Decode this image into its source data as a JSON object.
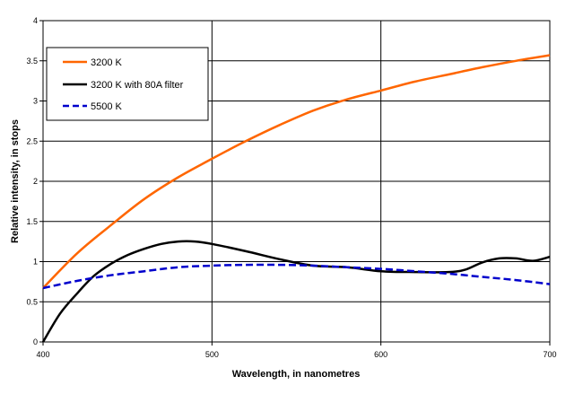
{
  "chart_data": {
    "type": "line",
    "title": "",
    "xlabel": "Wavelength, in nanometres",
    "ylabel": "Relative intensity, in stops",
    "xlim": [
      400,
      700
    ],
    "ylim": [
      0,
      4
    ],
    "x_ticks": [
      400,
      500,
      600,
      700
    ],
    "y_ticks": [
      0,
      0.5,
      1,
      1.5,
      2,
      2.5,
      3,
      3.5,
      4
    ],
    "y_tick_labels": [
      "0",
      "0.5",
      "1",
      "1.5",
      "2",
      "2.5",
      "3",
      "3.5",
      "4"
    ],
    "x_tick_labels": [
      "400",
      "500",
      "600",
      "700"
    ],
    "grid": true,
    "legend_position": "top-left",
    "series": [
      {
        "name": "3200 K",
        "color": "#ff6600",
        "dash": "solid",
        "points": [
          [
            400,
            0.67
          ],
          [
            420,
            1.1
          ],
          [
            440,
            1.45
          ],
          [
            460,
            1.78
          ],
          [
            480,
            2.05
          ],
          [
            500,
            2.28
          ],
          [
            520,
            2.5
          ],
          [
            540,
            2.7
          ],
          [
            560,
            2.88
          ],
          [
            580,
            3.02
          ],
          [
            600,
            3.13
          ],
          [
            620,
            3.24
          ],
          [
            640,
            3.33
          ],
          [
            660,
            3.42
          ],
          [
            680,
            3.5
          ],
          [
            700,
            3.57
          ]
        ]
      },
      {
        "name": "3200 K with 80A filter",
        "color": "#000000",
        "dash": "solid",
        "points": [
          [
            400,
            0.0
          ],
          [
            410,
            0.35
          ],
          [
            420,
            0.6
          ],
          [
            430,
            0.82
          ],
          [
            440,
            0.97
          ],
          [
            450,
            1.08
          ],
          [
            460,
            1.16
          ],
          [
            470,
            1.22
          ],
          [
            480,
            1.25
          ],
          [
            490,
            1.25
          ],
          [
            500,
            1.22
          ],
          [
            520,
            1.13
          ],
          [
            540,
            1.03
          ],
          [
            560,
            0.95
          ],
          [
            580,
            0.93
          ],
          [
            600,
            0.88
          ],
          [
            620,
            0.87
          ],
          [
            640,
            0.87
          ],
          [
            650,
            0.9
          ],
          [
            660,
            0.99
          ],
          [
            670,
            1.04
          ],
          [
            680,
            1.04
          ],
          [
            690,
            1.01
          ],
          [
            700,
            1.06
          ]
        ]
      },
      {
        "name": "5500 K",
        "color": "#0000cc",
        "dash": "dashed",
        "points": [
          [
            400,
            0.67
          ],
          [
            420,
            0.76
          ],
          [
            440,
            0.83
          ],
          [
            460,
            0.88
          ],
          [
            480,
            0.93
          ],
          [
            500,
            0.95
          ],
          [
            520,
            0.96
          ],
          [
            540,
            0.96
          ],
          [
            560,
            0.95
          ],
          [
            580,
            0.93
          ],
          [
            600,
            0.91
          ],
          [
            620,
            0.88
          ],
          [
            640,
            0.85
          ],
          [
            660,
            0.81
          ],
          [
            680,
            0.77
          ],
          [
            700,
            0.72
          ]
        ]
      }
    ]
  }
}
